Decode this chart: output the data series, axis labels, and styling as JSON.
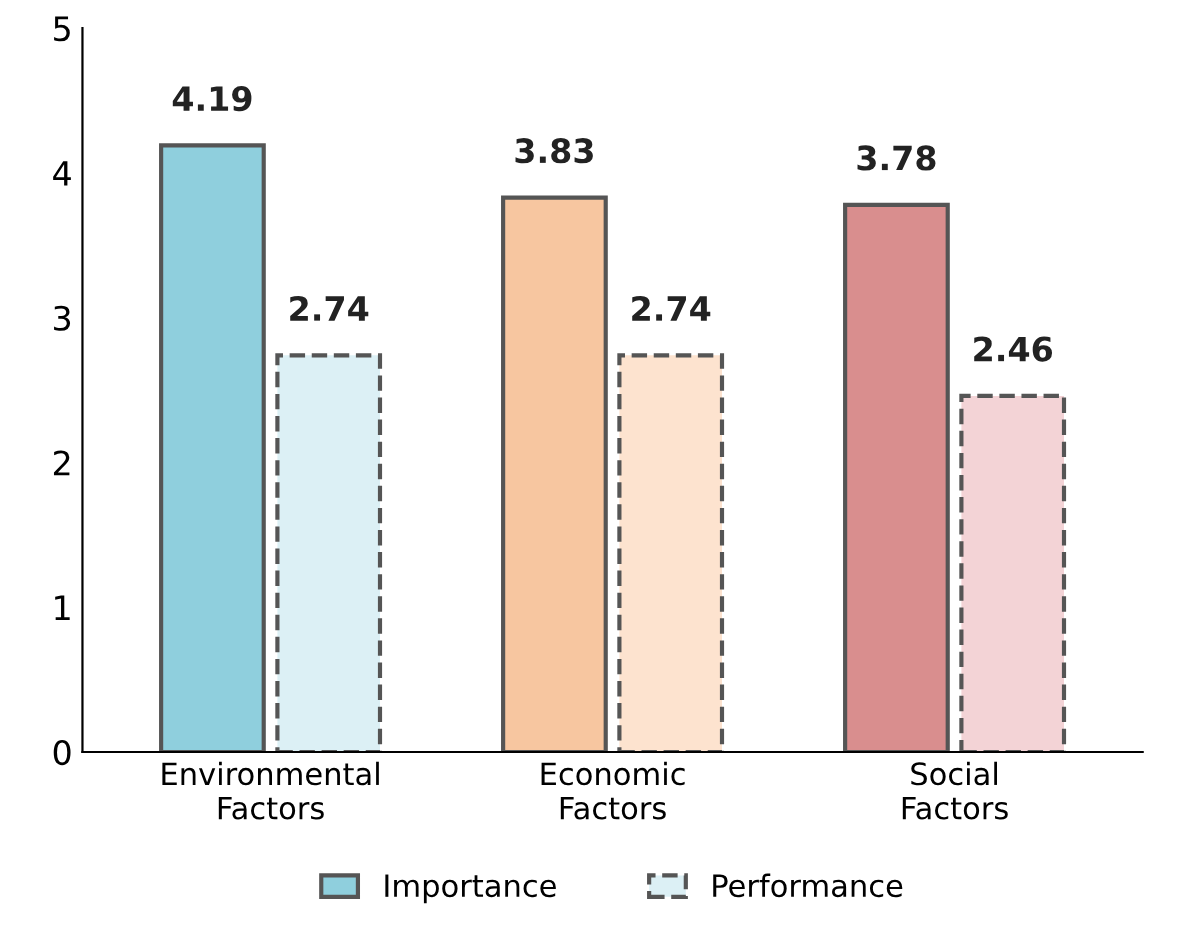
{
  "chart_data": {
    "type": "bar",
    "categories": [
      "Environmental\nFactors",
      "Economic\nFactors",
      "Social\nFactors"
    ],
    "series": [
      {
        "name": "Importance",
        "colors": [
          "#8fcfdd",
          "#f7c6a0",
          "#d98e8e"
        ],
        "values": [
          4.19,
          3.83,
          3.78
        ],
        "line_style": "solid"
      },
      {
        "name": "Performance",
        "colors": [
          "#dcf0f5",
          "#fde3cf",
          "#f3d3d6"
        ],
        "values": [
          2.74,
          2.74,
          2.46
        ],
        "line_style": "dashed"
      }
    ],
    "ylim": [
      0,
      5
    ],
    "yticks": [
      0,
      1,
      2,
      3,
      4,
      5
    ],
    "grid": false,
    "legend": "bottom",
    "data_labels": true
  }
}
